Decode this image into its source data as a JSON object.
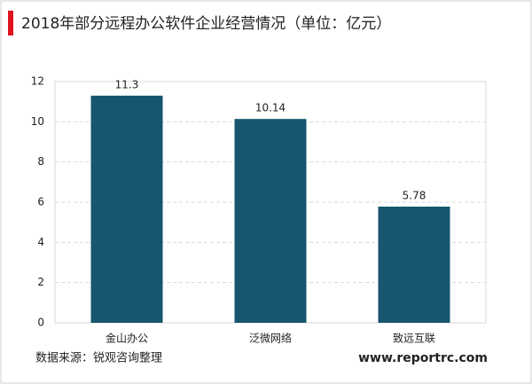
{
  "chart_data": {
    "type": "bar",
    "title": "2018年部分远程办公软件企业经营情况（单位：亿元）",
    "categories": [
      "金山办公",
      "泛微网络",
      "致远互联"
    ],
    "values": [
      11.3,
      10.14,
      5.78
    ],
    "color": "#17566e",
    "ylim": [
      0,
      12
    ],
    "yticks": [
      0,
      2,
      4,
      6,
      8,
      10,
      12
    ],
    "grid": true,
    "source": "数据来源：锐观咨询整理",
    "website": "www.reportrc.com"
  }
}
